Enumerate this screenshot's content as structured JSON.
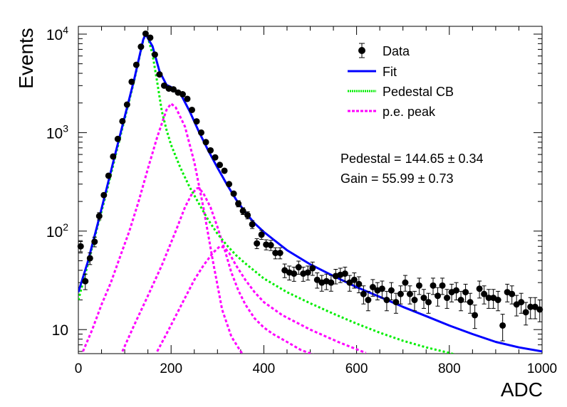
{
  "chart_data": {
    "type": "scatter",
    "xlabel": "ADC",
    "ylabel": "Events",
    "xlim": [
      0,
      1000
    ],
    "ylim": [
      5.7,
      12000
    ],
    "yscale": "log",
    "x_ticks": [
      "0",
      "200",
      "400",
      "600",
      "800",
      "1000"
    ],
    "y_ticks": [
      {
        "base": "10",
        "exp": ""
      },
      {
        "base": "10",
        "exp": "2"
      },
      {
        "base": "10",
        "exp": "3"
      },
      {
        "base": "10",
        "exp": "4"
      }
    ],
    "legend": {
      "placement": "top-right",
      "entries": [
        {
          "key": "data",
          "label": "Data"
        },
        {
          "key": "fit",
          "label": "Fit"
        },
        {
          "key": "pedestal",
          "label": "Pedestal CB"
        },
        {
          "key": "pe",
          "label": "p.e. peak"
        }
      ]
    },
    "annotations": [
      "Pedestal = 144.65 ± 0.34",
      "Gain = 55.99 ± 0.73"
    ],
    "colors": {
      "data": "#000000",
      "fit": "#0000ff",
      "pedestal": "#00ee00",
      "pe": "#ff00ff"
    },
    "series": [
      {
        "name": "Data",
        "type": "points",
        "x": [
          5,
          15,
          25,
          35,
          45,
          55,
          65,
          75,
          85,
          95,
          105,
          115,
          125,
          135,
          145,
          155,
          165,
          175,
          185,
          195,
          205,
          215,
          225,
          235,
          245,
          255,
          265,
          275,
          285,
          295,
          305,
          315,
          325,
          335,
          345,
          355,
          365,
          375,
          385,
          395,
          405,
          415,
          425,
          435,
          445,
          455,
          465,
          475,
          485,
          495,
          505,
          515,
          525,
          535,
          545,
          555,
          565,
          575,
          585,
          595,
          605,
          615,
          625,
          635,
          645,
          655,
          665,
          675,
          685,
          695,
          705,
          715,
          725,
          735,
          745,
          755,
          765,
          775,
          785,
          795,
          805,
          815,
          825,
          835,
          845,
          855,
          865,
          875,
          885,
          895,
          905,
          915,
          925,
          935,
          945,
          955,
          965,
          975,
          985,
          995
        ],
        "y": [
          70,
          31,
          53,
          78,
          142,
          232,
          365,
          572,
          862,
          1305,
          1925,
          3281,
          4881,
          7452,
          10100,
          9200,
          6200,
          3900,
          3000,
          2800,
          2750,
          2550,
          2450,
          2200,
          1700,
          1300,
          1000,
          800,
          660,
          560,
          470,
          410,
          300,
          240,
          190,
          160,
          145,
          117,
          75,
          92,
          73,
          72,
          60,
          60,
          40,
          38,
          37,
          43,
          37,
          38,
          42,
          32,
          30,
          31,
          30,
          35,
          36,
          37,
          30,
          32,
          29,
          23,
          20,
          27,
          25,
          26,
          20,
          25,
          19,
          23,
          30,
          23,
          20,
          28,
          21,
          19,
          28,
          22,
          28,
          21,
          24,
          25,
          20,
          24,
          19,
          14,
          26,
          23,
          21,
          21,
          20,
          11,
          24,
          23,
          18,
          19,
          15,
          17,
          17,
          16
        ]
      },
      {
        "name": "Fit",
        "type": "line",
        "x": [
          0,
          20,
          40,
          60,
          80,
          100,
          120,
          140,
          145,
          160,
          175,
          190,
          200,
          220,
          240,
          260,
          280,
          300,
          320,
          340,
          360,
          380,
          400,
          450,
          500,
          550,
          600,
          650,
          700,
          750,
          800,
          850,
          900,
          950,
          1000
        ],
        "y": [
          24,
          48,
          110,
          260,
          620,
          1450,
          3400,
          8800,
          10000,
          7500,
          4200,
          3050,
          2900,
          2500,
          1650,
          1020,
          660,
          440,
          300,
          210,
          155,
          120,
          98,
          64,
          46,
          35,
          27,
          21.5,
          17,
          13.7,
          11,
          9,
          7.5,
          6.6,
          6.0
        ]
      },
      {
        "name": "Pedestal CB",
        "type": "line",
        "x": [
          0,
          20,
          40,
          60,
          80,
          100,
          120,
          140,
          145,
          150,
          160,
          170,
          180,
          190,
          200,
          220,
          240,
          260,
          280,
          300,
          320,
          340,
          360,
          400,
          450,
          500,
          550,
          600,
          650,
          700,
          750,
          800,
          850
        ],
        "y": [
          20,
          45,
          105,
          240,
          580,
          1380,
          3300,
          8700,
          10000,
          9300,
          6200,
          3250,
          1650,
          1070,
          750,
          440,
          280,
          190,
          130,
          94,
          72,
          57,
          47,
          33,
          24,
          18.5,
          14.5,
          11.5,
          9.3,
          7.7,
          6.6,
          5.8,
          5.0
        ]
      },
      {
        "name": "p.e. peak 1",
        "type": "line",
        "x": [
          10,
          30,
          50,
          70,
          90,
          110,
          130,
          150,
          170,
          190,
          200,
          210,
          230,
          250,
          270,
          290,
          310,
          330,
          350,
          370
        ],
        "y": [
          6,
          10,
          18,
          30,
          55,
          100,
          200,
          430,
          900,
          1700,
          1970,
          1800,
          1150,
          500,
          170,
          50,
          16,
          8.5,
          6,
          4.5
        ]
      },
      {
        "name": "p.e. peak 2",
        "type": "line",
        "x": [
          95,
          120,
          150,
          180,
          210,
          230,
          245,
          255,
          260,
          270,
          285,
          300,
          315,
          330,
          345,
          360,
          380,
          400,
          420,
          450,
          480,
          510
        ],
        "y": [
          6,
          11,
          22,
          45,
          100,
          175,
          240,
          270,
          275,
          240,
          175,
          110,
          66,
          38,
          25,
          18,
          13,
          10.5,
          9,
          7.5,
          6.2,
          5.5
        ]
      },
      {
        "name": "p.e. peak 3",
        "type": "line",
        "x": [
          170,
          195,
          220,
          250,
          270,
          290,
          305,
          315,
          325,
          340,
          360,
          380,
          400,
          440,
          500,
          560,
          620
        ],
        "y": [
          6,
          10,
          17,
          32,
          45,
          60,
          70,
          68,
          60,
          45,
          32,
          24,
          19,
          14,
          10,
          7.5,
          5.8
        ]
      }
    ]
  }
}
